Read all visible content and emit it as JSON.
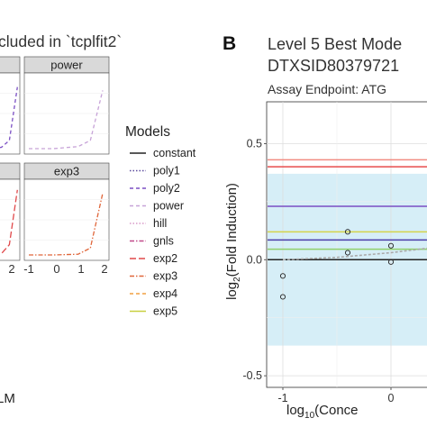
{
  "chart_data": [
    {
      "type": "line",
      "title": "cluded in `tcplfit2`",
      "facets": [
        {
          "label": "",
          "x": [
            -1,
            0,
            1,
            2
          ],
          "series": [
            {
              "name": "poly2",
              "y": [
                0.0,
                0.02,
                0.12,
                0.9
              ]
            }
          ]
        },
        {
          "label": "power",
          "x": [
            -1,
            0,
            1,
            1.5,
            2
          ],
          "series": [
            {
              "name": "power",
              "y": [
                0.0,
                0.0,
                0.03,
                0.12,
                0.85
              ]
            }
          ]
        },
        {
          "label": "",
          "x": [
            -1,
            0,
            1,
            2
          ],
          "series": [
            {
              "name": "exp2",
              "y": [
                0.0,
                0.02,
                0.15,
                0.95
              ]
            }
          ]
        },
        {
          "label": "exp3",
          "x": [
            -1,
            0,
            1,
            1.5,
            2
          ],
          "series": [
            {
              "name": "exp3",
              "y": [
                0.0,
                0.0,
                0.01,
                0.1,
                0.9
              ]
            }
          ]
        }
      ],
      "x_tick_labels": [
        "2",
        "-1",
        "0",
        "1",
        "2"
      ],
      "xlabel": "LM",
      "legend": {
        "title": "Models",
        "placement": "right",
        "entries": [
          {
            "name": "constant",
            "color": "#222222",
            "dash": "solid"
          },
          {
            "name": "poly1",
            "color": "#5b4a9e",
            "dash": "dotted"
          },
          {
            "name": "poly2",
            "color": "#7b4fc4",
            "dash": "dashed"
          },
          {
            "name": "power",
            "color": "#c7a3d8",
            "dash": "dashed"
          },
          {
            "name": "hill",
            "color": "#d99ac8",
            "dash": "dotted"
          },
          {
            "name": "gnls",
            "color": "#c04a8a",
            "dash": "dashdot"
          },
          {
            "name": "exp2",
            "color": "#e0484a",
            "dash": "longdash"
          },
          {
            "name": "exp3",
            "color": "#e0663a",
            "dash": "dashdot"
          },
          {
            "name": "exp4",
            "color": "#f0a040",
            "dash": "dashed"
          },
          {
            "name": "exp5",
            "color": "#c8d040",
            "dash": "solid"
          }
        ]
      }
    },
    {
      "type": "scatter",
      "panel_label": "B",
      "title": "Level 5 Best Mode",
      "subtitle": "DTXSID80379721",
      "assay": "Assay Endpoint:  ATG",
      "ylabel_prefix": "log",
      "ylabel_sub": "2",
      "ylabel_suffix": "(Fold Induction)",
      "xlabel_prefix": "log",
      "xlabel_sub": "10",
      "xlabel_suffix": "(Conce",
      "ylim": [
        -0.55,
        0.68
      ],
      "xlim": [
        -1.15,
        0.35
      ],
      "x_ticks": [
        -1,
        0
      ],
      "y_ticks": [
        0.5,
        0.0,
        -0.5
      ],
      "y_tick_labels": [
        "0.5",
        "0.0",
        "-0.5"
      ],
      "x_tick_labels": [
        "-1",
        "0"
      ],
      "grid": true,
      "band": {
        "y_min": -0.37,
        "y_max": 0.37,
        "color": "#d6eef7"
      },
      "hlines": [
        {
          "y": 0.43,
          "color": "#f28b82"
        },
        {
          "y": 0.4,
          "color": "#e84c4c"
        },
        {
          "y": 0.23,
          "color": "#7b4fc4"
        },
        {
          "y": 0.12,
          "color": "#d4d44a"
        },
        {
          "y": 0.085,
          "color": "#4b3ca8"
        },
        {
          "y": 0.045,
          "color": "#8fd06a"
        },
        {
          "y": 0.0,
          "color": "#222222"
        }
      ],
      "fit_curve": {
        "x": [
          -1,
          -0.5,
          0,
          0.35
        ],
        "y": [
          0.0,
          0.01,
          0.03,
          0.05
        ],
        "color": "#aaaaaa"
      },
      "points": [
        {
          "x": -1.0,
          "y": -0.07
        },
        {
          "x": -1.0,
          "y": -0.16
        },
        {
          "x": -0.4,
          "y": 0.12
        },
        {
          "x": -0.4,
          "y": 0.03
        },
        {
          "x": 0.0,
          "y": 0.06
        },
        {
          "x": 0.0,
          "y": -0.01
        }
      ]
    }
  ]
}
